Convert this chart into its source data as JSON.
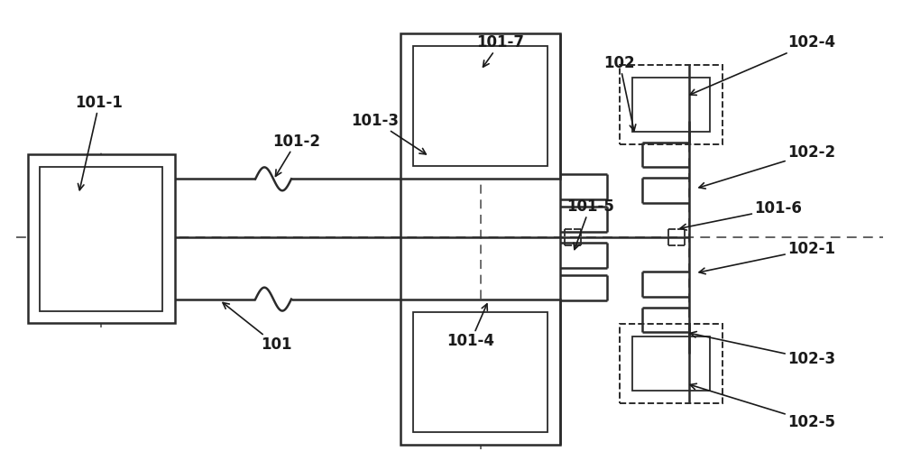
{
  "bg_color": "#ffffff",
  "line_color": "#2b2b2b",
  "label_color": "#1a1a1a",
  "figsize": [
    10.0,
    5.21
  ],
  "dpi": 100
}
